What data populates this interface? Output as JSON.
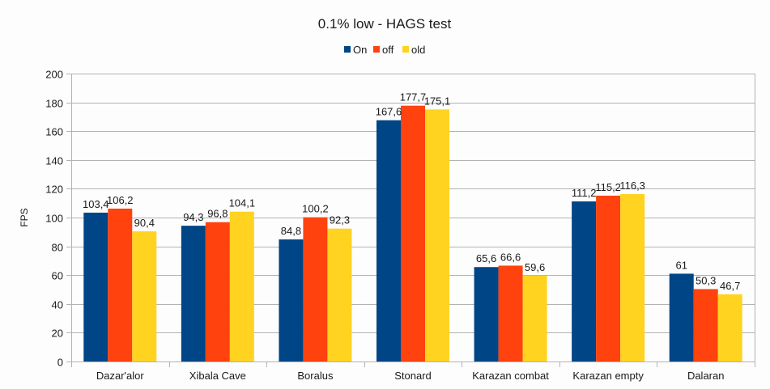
{
  "chart_data": {
    "type": "bar",
    "title": "0.1% low - HAGS test",
    "xlabel": "",
    "ylabel": "FPS",
    "ylim": [
      0,
      200
    ],
    "yticks": [
      0,
      20,
      40,
      60,
      80,
      100,
      120,
      140,
      160,
      180,
      200
    ],
    "grid": true,
    "legend_position": "top-center",
    "categories": [
      "Dazar'alor",
      "Xibala Cave",
      "Boralus",
      "Stonard",
      "Karazan combat",
      "Karazan empty",
      "Dalaran"
    ],
    "series": [
      {
        "name": "On",
        "color": "#004586",
        "values": [
          103.4,
          94.3,
          84.8,
          167.6,
          65.6,
          111.2,
          61
        ],
        "labels": [
          "103,4",
          "94,3",
          "84,8",
          "167,6",
          "65,6",
          "111,2",
          "61"
        ]
      },
      {
        "name": "off",
        "color": "#ff420e",
        "values": [
          106.2,
          96.8,
          100.2,
          177.7,
          66.6,
          115.2,
          50.3
        ],
        "labels": [
          "106,2",
          "96,8",
          "100,2",
          "177,7",
          "66,6",
          "115,2",
          "50,3"
        ]
      },
      {
        "name": "old",
        "color": "#ffd320",
        "values": [
          90.4,
          104.1,
          92.3,
          175.1,
          59.6,
          116.3,
          46.7
        ],
        "labels": [
          "90,4",
          "104,1",
          "92,3",
          "175,1",
          "59,6",
          "116,3",
          "46,7"
        ]
      }
    ]
  }
}
